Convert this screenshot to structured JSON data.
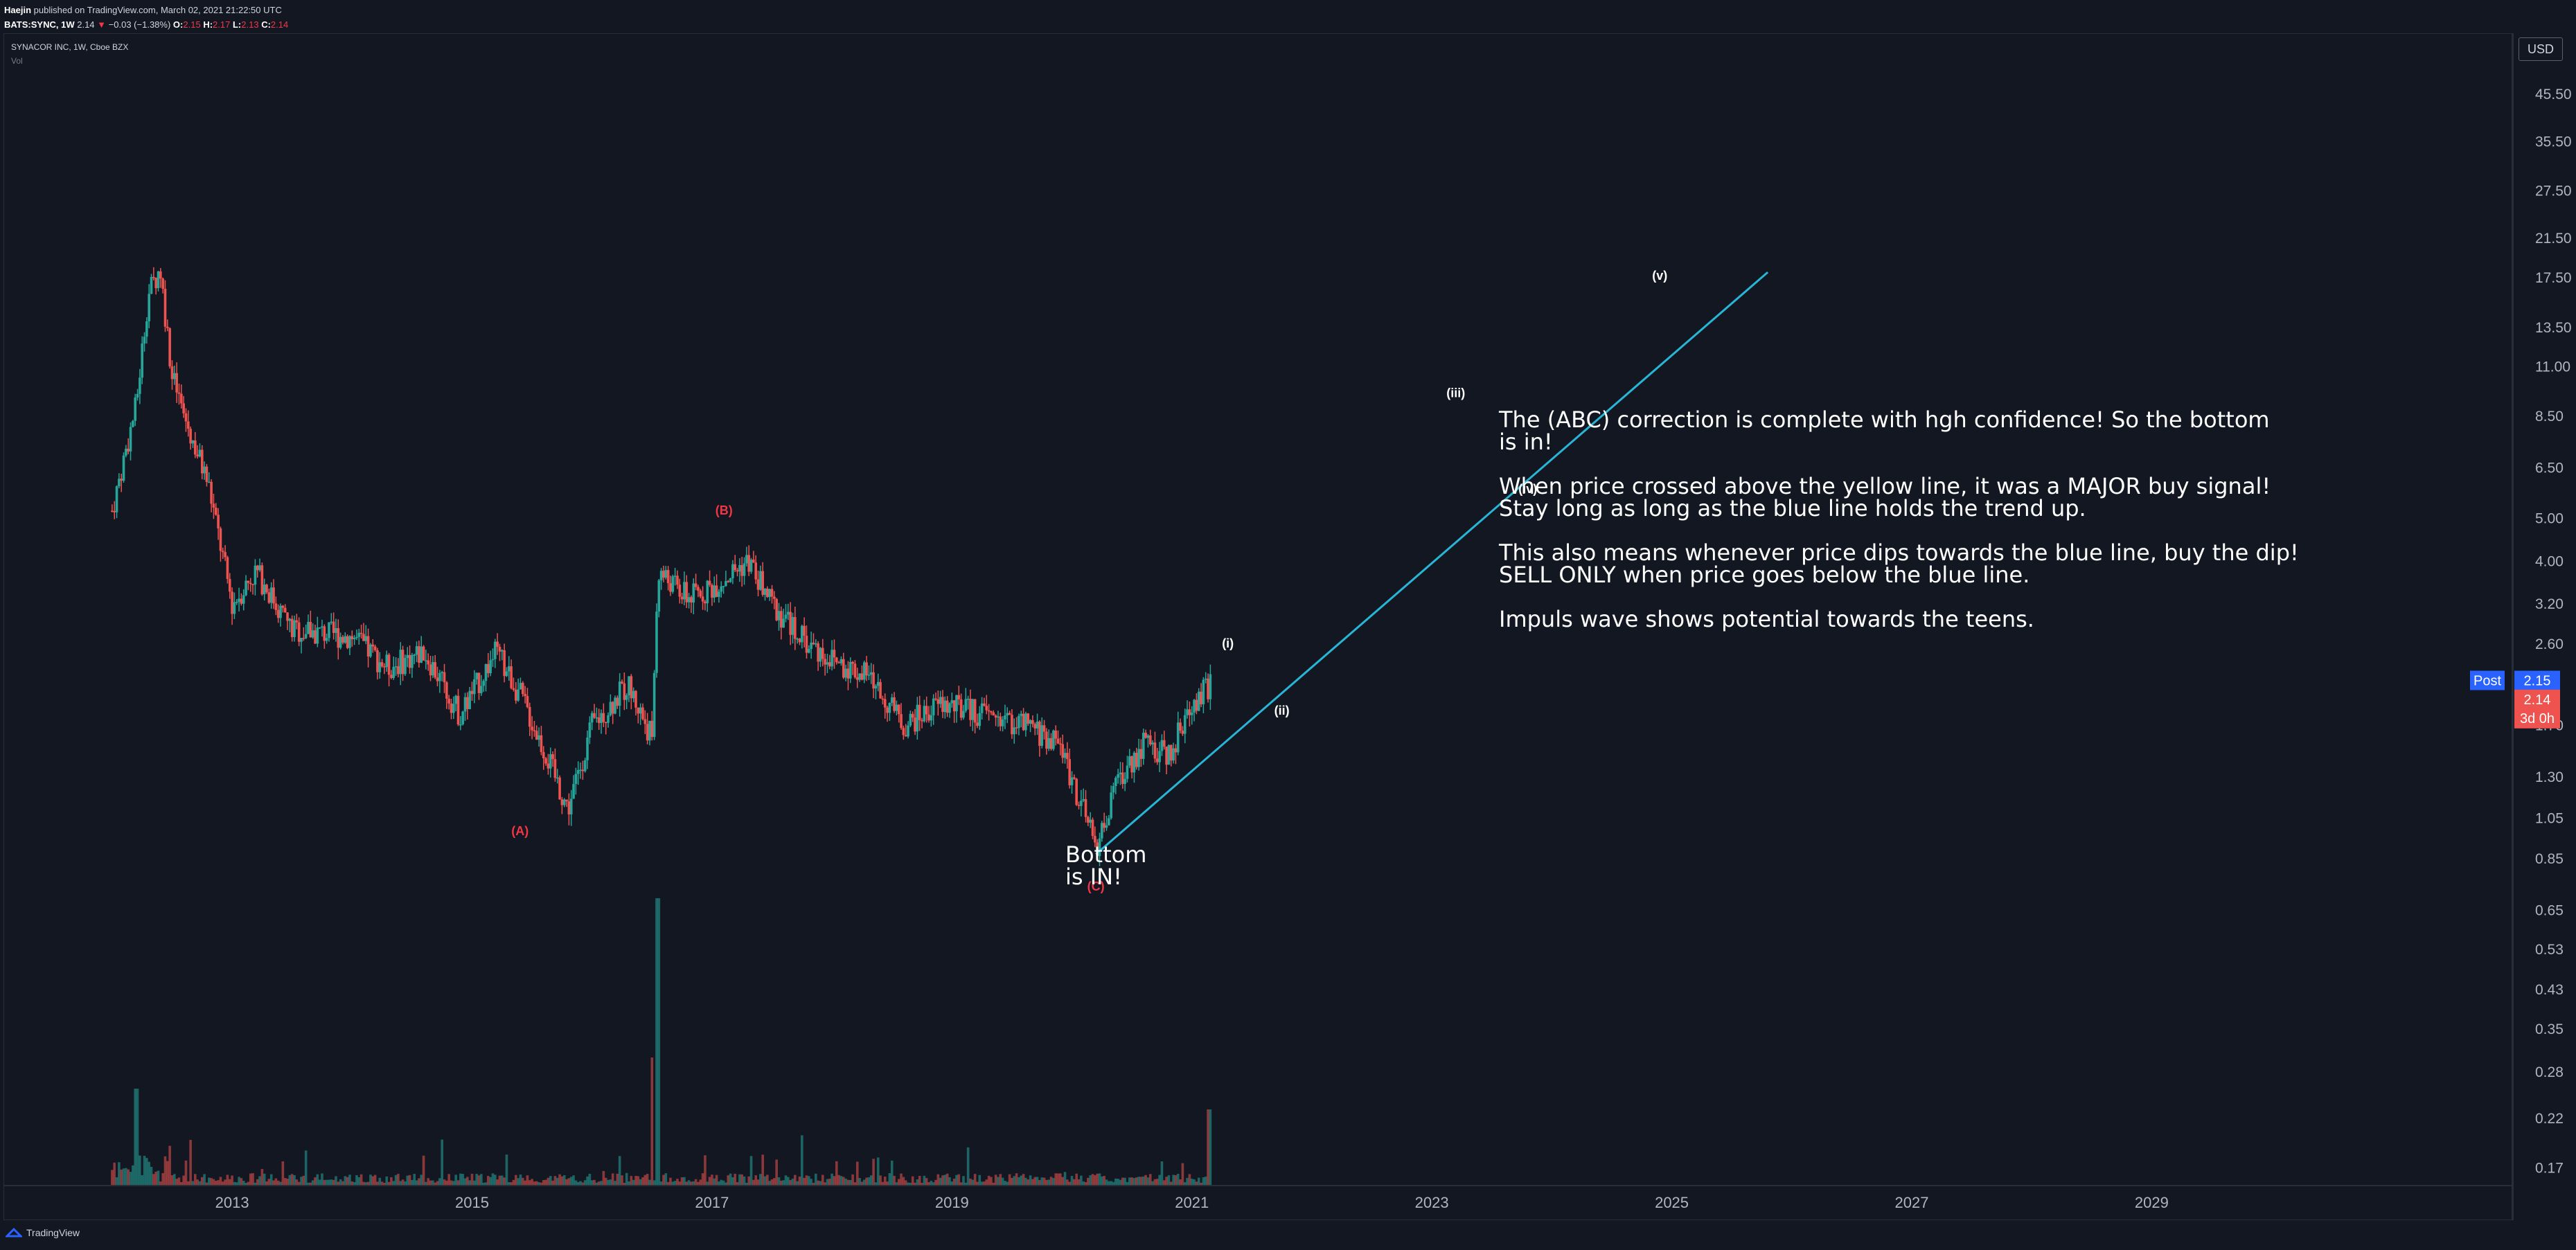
{
  "header": {
    "author": "Haejin",
    "published": "published on TradingView.com, March 02, 2021 21:22:50 UTC",
    "symbol_line": "BATS:SYNC, 1W",
    "last": "2.14",
    "change_arrow": "▼",
    "change": "−0.03 (−1.38%)",
    "o_label": "O:",
    "o": "2.15",
    "h_label": "H:",
    "h": "2.17",
    "l_label": "L:",
    "l": "2.13",
    "c_label": "C:",
    "c": "2.14"
  },
  "legend": {
    "title": "SYNACOR INC, 1W, Cboe BZX",
    "vol": "Vol"
  },
  "currency_button": "USD",
  "footer": {
    "brand": "TradingView"
  },
  "colors": {
    "background": "#131722",
    "up": "#26a69a",
    "down": "#ef5350",
    "trendline": "#29b6d6",
    "post": "#2962ff",
    "price_tag": "#ef5350",
    "wave_abc": "#f23645"
  },
  "annotations": {
    "main_text": [
      "The (ABC) correction is complete with hgh confidence! So the bottom",
      "is in!",
      "",
      "When price crossed above the yellow line, it was a MAJOR buy signal!",
      "Stay long as long as the blue line holds the trend up.",
      "",
      "This also means whenever price dips towards the blue line, buy the dip!",
      "SELL ONLY when price goes below the blue line.",
      "",
      "Impuls wave shows potential towards the teens."
    ],
    "bottom_text": [
      "Bottom",
      "is IN!"
    ]
  },
  "chart_data": {
    "type": "candlestick",
    "symbol": "SYNACOR INC",
    "interval": "1W",
    "exchange": "Cboe BZX",
    "currency": "USD",
    "y_scale": "log",
    "y_axis_ticks": [
      "45.50",
      "35.50",
      "27.50",
      "21.50",
      "17.50",
      "13.50",
      "11.00",
      "8.50",
      "6.50",
      "5.00",
      "4.00",
      "3.20",
      "2.60",
      "1.70",
      "1.30",
      "1.05",
      "0.85",
      "0.65",
      "0.53",
      "0.43",
      "0.35",
      "0.28",
      "0.22",
      "0.17"
    ],
    "x_axis_ticks": [
      "2013",
      "2015",
      "2017",
      "2019",
      "2021",
      "2023",
      "2025",
      "2027",
      "2029"
    ],
    "x_range": [
      2011.1,
      2032.0
    ],
    "y_range": [
      0.155,
      62.0
    ],
    "price_path": [
      {
        "x": 2012.0,
        "y": 5.2
      },
      {
        "x": 2012.2,
        "y": 9.0
      },
      {
        "x": 2012.3,
        "y": 16.0
      },
      {
        "x": 2012.4,
        "y": 18.5
      },
      {
        "x": 2012.5,
        "y": 10.5
      },
      {
        "x": 2012.6,
        "y": 8.5
      },
      {
        "x": 2012.8,
        "y": 6.0
      },
      {
        "x": 2013.0,
        "y": 3.2
      },
      {
        "x": 2013.2,
        "y": 3.8
      },
      {
        "x": 2013.5,
        "y": 2.8
      },
      {
        "x": 2014.0,
        "y": 2.7
      },
      {
        "x": 2014.3,
        "y": 2.3
      },
      {
        "x": 2014.6,
        "y": 2.5
      },
      {
        "x": 2014.9,
        "y": 1.8
      },
      {
        "x": 2015.2,
        "y": 2.5
      },
      {
        "x": 2015.4,
        "y": 2.0
      },
      {
        "x": 2015.6,
        "y": 1.5
      },
      {
        "x": 2015.8,
        "y": 1.1
      },
      {
        "x": 2016.0,
        "y": 1.7
      },
      {
        "x": 2016.3,
        "y": 2.1
      },
      {
        "x": 2016.5,
        "y": 1.6
      },
      {
        "x": 2016.55,
        "y": 3.8
      },
      {
        "x": 2016.8,
        "y": 3.3
      },
      {
        "x": 2017.0,
        "y": 3.5
      },
      {
        "x": 2017.3,
        "y": 4.0
      },
      {
        "x": 2017.5,
        "y": 3.2
      },
      {
        "x": 2017.8,
        "y": 2.6
      },
      {
        "x": 2018.0,
        "y": 2.4
      },
      {
        "x": 2018.3,
        "y": 2.2
      },
      {
        "x": 2018.6,
        "y": 1.7
      },
      {
        "x": 2018.9,
        "y": 1.9
      },
      {
        "x": 2019.3,
        "y": 1.8
      },
      {
        "x": 2019.6,
        "y": 1.7
      },
      {
        "x": 2019.9,
        "y": 1.55
      },
      {
        "x": 2020.2,
        "y": 0.9
      },
      {
        "x": 2020.4,
        "y": 1.3
      },
      {
        "x": 2020.6,
        "y": 1.55
      },
      {
        "x": 2020.8,
        "y": 1.45
      },
      {
        "x": 2021.0,
        "y": 1.9
      },
      {
        "x": 2021.17,
        "y": 2.14
      }
    ],
    "current_price": 2.14,
    "post_market_label": "Post",
    "post_market_price": 2.15,
    "countdown": "3d 0h",
    "trendline": {
      "x1": 2020.2,
      "y1": 0.87,
      "x2": 2025.8,
      "y2": 18.0
    },
    "wave_labels": [
      {
        "label": "(A)",
        "x": 2015.4,
        "y": 0.96,
        "color": "red"
      },
      {
        "label": "(B)",
        "x": 2017.1,
        "y": 5.1,
        "color": "red"
      },
      {
        "label": "(C)",
        "x": 2020.2,
        "y": 0.72,
        "color": "red"
      },
      {
        "label": "(i)",
        "x": 2021.3,
        "y": 2.55,
        "color": "white"
      },
      {
        "label": "(ii)",
        "x": 2021.75,
        "y": 1.8,
        "color": "white"
      },
      {
        "label": "(iii)",
        "x": 2023.2,
        "y": 9.4,
        "color": "white"
      },
      {
        "label": "(iv)",
        "x": 2023.8,
        "y": 5.7,
        "color": "white"
      },
      {
        "label": "(v)",
        "x": 2024.9,
        "y": 17.3,
        "color": "white"
      }
    ]
  }
}
